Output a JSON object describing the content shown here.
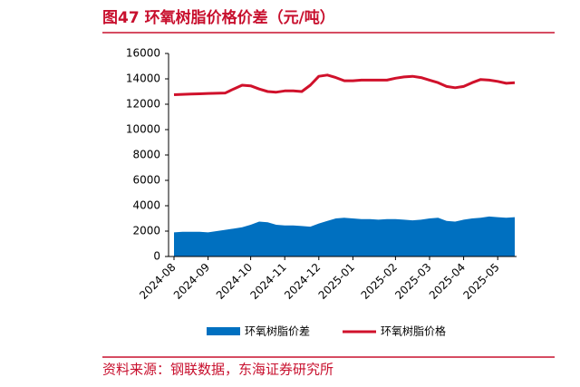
{
  "chart_data": {
    "type": "line-area",
    "title": "图47  环氧树脂价格价差（元/吨）",
    "source": "资料来源：钢联数据，东海证券研究所",
    "categories": [
      "2024-08",
      null,
      null,
      null,
      "2024-09",
      null,
      null,
      null,
      null,
      "2024-10",
      null,
      null,
      null,
      "2024-11",
      null,
      null,
      null,
      "2024-12",
      null,
      null,
      null,
      "2025-01",
      null,
      null,
      null,
      null,
      "2025-02",
      null,
      null,
      null,
      "2025-03",
      null,
      null,
      null,
      "2025-04",
      null,
      null,
      null,
      "2025-05",
      null,
      null
    ],
    "series": [
      {
        "name": "环氧树脂价差",
        "type": "area",
        "color": "#0070c0",
        "values": [
          1900,
          1950,
          1950,
          1950,
          1900,
          2000,
          2100,
          2200,
          2300,
          2500,
          2750,
          2700,
          2500,
          2450,
          2450,
          2400,
          2350,
          2600,
          2800,
          3000,
          3050,
          3000,
          2950,
          2950,
          2900,
          2950,
          2950,
          2900,
          2850,
          2900,
          3000,
          3050,
          2800,
          2750,
          2900,
          3000,
          3050,
          3150,
          3100,
          3050,
          3100
        ]
      },
      {
        "name": "环氧树脂价格",
        "type": "line",
        "color": "#d0112b",
        "values": [
          12750,
          12780,
          12800,
          12820,
          12850,
          12870,
          12880,
          13200,
          13500,
          13450,
          13200,
          13000,
          12950,
          13050,
          13050,
          13000,
          13500,
          14200,
          14300,
          14100,
          13850,
          13850,
          13900,
          13900,
          13900,
          13900,
          14050,
          14150,
          14200,
          14100,
          13900,
          13700,
          13400,
          13300,
          13400,
          13700,
          13950,
          13900,
          13800,
          13650,
          13700
        ]
      }
    ],
    "ylim": [
      0,
      16000
    ],
    "yticks": [
      0,
      2000,
      4000,
      6000,
      8000,
      10000,
      12000,
      14000,
      16000
    ],
    "grid": false
  }
}
